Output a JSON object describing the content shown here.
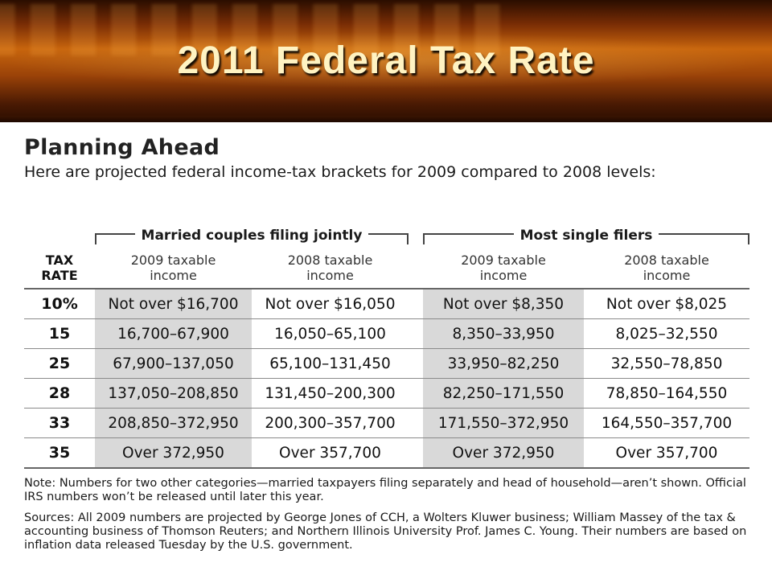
{
  "slide": {
    "title": "2011 Federal Tax Rate"
  },
  "doc": {
    "heading": "Planning Ahead",
    "subtitle": "Here are projected federal income-tax brackets for 2009 compared to 2008 levels:"
  },
  "table": {
    "groups": [
      "Married couples filing jointly",
      "Most single filers"
    ],
    "rate_header": [
      "TAX",
      "RATE"
    ],
    "column_headers": [
      [
        "2009 taxable",
        "income"
      ],
      [
        "2008 taxable",
        "income"
      ],
      [
        "2009 taxable",
        "income"
      ],
      [
        "2008 taxable",
        "income"
      ]
    ],
    "rows": [
      {
        "rate": "10%",
        "cells": [
          "Not over $16,700",
          "Not over $16,050",
          "Not over $8,350",
          "Not over $8,025"
        ]
      },
      {
        "rate": "15",
        "cells": [
          "16,700–67,900",
          "16,050–65,100",
          "8,350–33,950",
          "8,025–32,550"
        ]
      },
      {
        "rate": "25",
        "cells": [
          "67,900–137,050",
          "65,100–131,450",
          "33,950–82,250",
          "32,550–78,850"
        ]
      },
      {
        "rate": "28",
        "cells": [
          "137,050–208,850",
          "131,450–200,300",
          "82,250–171,550",
          "78,850–164,550"
        ]
      },
      {
        "rate": "33",
        "cells": [
          "208,850–372,950",
          "200,300–357,700",
          "171,550–372,950",
          "164,550–357,700"
        ]
      },
      {
        "rate": "35",
        "cells": [
          "Over 372,950",
          "Over 357,700",
          "Over 372,950",
          "Over 357,700"
        ]
      }
    ]
  },
  "notes": {
    "note": "Note: Numbers for two other categories—married taxpayers filing separately and head of household—aren’t shown. Official IRS numbers won’t be released until later this year.",
    "sources": "Sources: All 2009 numbers are projected by George Jones of CCH, a Wolters Kluwer business; William Massey of the tax & accounting business of Thomson Reuters; and Northern Illinois University Prof. James C. Young. Their numbers are based on inflation data released Tuesday by the U.S. government."
  },
  "colors": {
    "banner_title": "#fff3c2",
    "banner_orange": "#c8650d",
    "cell_shade": "#d9d9d9"
  }
}
